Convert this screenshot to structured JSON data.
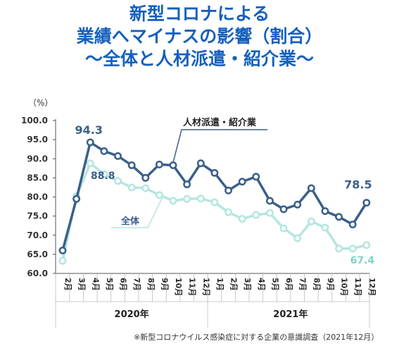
{
  "title_lines": [
    "新型コロナによる",
    "業績へマイナスの影響（割合）",
    "～全体と人材派遣・紹介業～"
  ],
  "footnote": "※新型コロナウイルス感染症に対する企業の意識調査（2021年12月）",
  "colors": {
    "title": "#1560bd",
    "series_main": "#3a5f8a",
    "series_all": "#b5e6e0",
    "label_all": "#7fd3c6"
  },
  "chart_data": {
    "type": "line",
    "ylabel": "（%）",
    "ylim": [
      60.0,
      100.0
    ],
    "yticks": [
      "100.0",
      "95.0",
      "90.0",
      "85.0",
      "80.0",
      "75.0",
      "70.0",
      "65.0",
      "60.0"
    ],
    "x": [
      "2月",
      "3月",
      "4月",
      "5月",
      "6月",
      "7月",
      "8月",
      "9月",
      "10月",
      "11月",
      "12月",
      "1月",
      "2月",
      "3月",
      "4月",
      "5月",
      "6月",
      "7月",
      "8月",
      "9月",
      "10月",
      "11月",
      "12月"
    ],
    "year_groups": [
      {
        "label": "2020年",
        "count": 11
      },
      {
        "label": "2021年",
        "count": 12
      }
    ],
    "series": [
      {
        "name": "人材派遣・紹介業",
        "values": [
          66.0,
          79.5,
          94.3,
          92.0,
          90.7,
          88.3,
          85.0,
          88.5,
          88.3,
          83.3,
          88.8,
          86.3,
          81.7,
          84.0,
          85.3,
          79.0,
          76.8,
          78.0,
          82.3,
          76.3,
          74.8,
          72.8,
          78.5
        ]
      },
      {
        "name": "全体",
        "values": [
          63.3,
          80.2,
          88.8,
          86.0,
          84.2,
          82.5,
          82.3,
          80.5,
          79.0,
          79.5,
          79.6,
          78.6,
          76.0,
          74.3,
          75.3,
          75.8,
          71.8,
          69.2,
          73.6,
          72.0,
          66.5,
          66.5,
          67.4
        ]
      }
    ],
    "annotations": [
      "94.3",
      "88.8",
      "78.5",
      "67.4"
    ]
  }
}
